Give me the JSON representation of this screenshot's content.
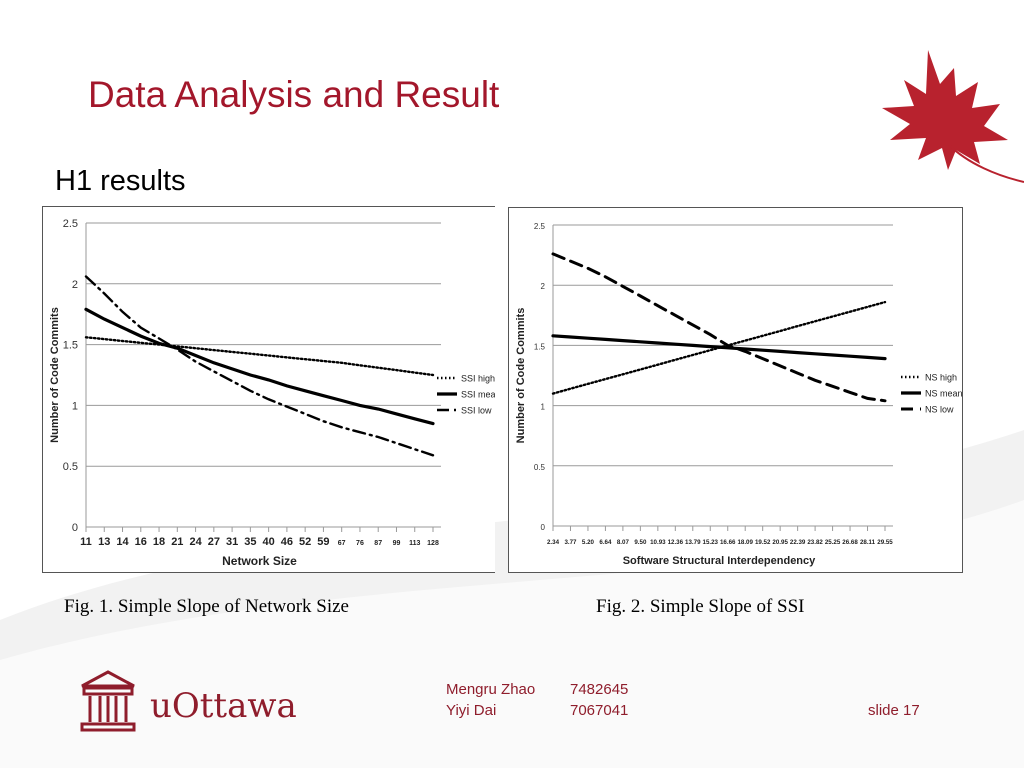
{
  "slide": {
    "title": "Data Analysis and Result",
    "subtitle": "H1 results",
    "caption1": "Fig. 1. Simple Slope of Network Size",
    "caption2": "Fig. 2. Simple Slope of SSI",
    "logo_text": "uOttawa",
    "footer": {
      "author1_name": "Mengru Zhao",
      "author1_id": "7482645",
      "author2_name": "Yiyi Dai",
      "author2_id": "7067041",
      "slide_label": "slide 17"
    },
    "colors": {
      "title": "#a3172b",
      "brand": "#8f1d2c",
      "leaf": "#b8222e"
    }
  },
  "chart_data": [
    {
      "type": "line",
      "xlabel": "Network Size",
      "ylabel": "Number of Code Commits",
      "ylim": [
        0,
        2.5
      ],
      "yticks": [
        "0",
        "0.5",
        "1",
        "1.5",
        "2",
        "2.5"
      ],
      "categories": [
        "11",
        "13",
        "14",
        "16",
        "18",
        "21",
        "24",
        "27",
        "31",
        "35",
        "40",
        "46",
        "52",
        "59",
        "67",
        "76",
        "87",
        "99",
        "113",
        "128"
      ],
      "grid": true,
      "legend_position": "right",
      "series": [
        {
          "name": "SSI high",
          "style": "dotted",
          "values": [
            1.56,
            1.545,
            1.53,
            1.515,
            1.5,
            1.485,
            1.47,
            1.455,
            1.44,
            1.425,
            1.41,
            1.395,
            1.38,
            1.365,
            1.35,
            1.33,
            1.31,
            1.29,
            1.27,
            1.25
          ]
        },
        {
          "name": "SSI mean",
          "style": "solid",
          "values": [
            1.79,
            1.71,
            1.64,
            1.57,
            1.51,
            1.47,
            1.41,
            1.35,
            1.3,
            1.25,
            1.21,
            1.16,
            1.12,
            1.08,
            1.04,
            1.0,
            0.97,
            0.93,
            0.89,
            0.85
          ]
        },
        {
          "name": "SSI low",
          "style": "dashdot",
          "values": [
            2.06,
            1.92,
            1.77,
            1.64,
            1.55,
            1.46,
            1.36,
            1.28,
            1.2,
            1.12,
            1.05,
            0.99,
            0.93,
            0.87,
            0.82,
            0.78,
            0.74,
            0.69,
            0.64,
            0.59
          ]
        }
      ]
    },
    {
      "type": "line",
      "xlabel": "Software Structural Interdependency",
      "ylabel": "Number of Code Commits",
      "ylim": [
        0,
        2.5
      ],
      "yticks": [
        "0",
        "0.5",
        "1",
        "1.5",
        "2",
        "2.5"
      ],
      "categories": [
        "2.34",
        "3.77",
        "5.20",
        "6.64",
        "8.07",
        "9.50",
        "10.93",
        "12.36",
        "13.79",
        "15.23",
        "16.66",
        "18.09",
        "19.52",
        "20.95",
        "22.39",
        "23.82",
        "25.25",
        "26.68",
        "28.11",
        "29.55"
      ],
      "grid": true,
      "legend_position": "right",
      "series": [
        {
          "name": "NS high",
          "style": "dotted",
          "values": [
            1.1,
            1.14,
            1.18,
            1.22,
            1.26,
            1.3,
            1.34,
            1.38,
            1.42,
            1.46,
            1.5,
            1.54,
            1.58,
            1.62,
            1.66,
            1.7,
            1.74,
            1.78,
            1.82,
            1.86
          ]
        },
        {
          "name": "NS mean",
          "style": "solid",
          "values": [
            1.58,
            1.57,
            1.56,
            1.55,
            1.54,
            1.53,
            1.52,
            1.51,
            1.5,
            1.49,
            1.48,
            1.47,
            1.46,
            1.45,
            1.44,
            1.43,
            1.42,
            1.41,
            1.4,
            1.39
          ]
        },
        {
          "name": "NS low",
          "style": "dashed",
          "values": [
            2.26,
            2.2,
            2.14,
            2.07,
            1.99,
            1.91,
            1.83,
            1.75,
            1.67,
            1.59,
            1.5,
            1.45,
            1.39,
            1.33,
            1.27,
            1.21,
            1.16,
            1.11,
            1.06,
            1.04
          ]
        }
      ]
    }
  ]
}
